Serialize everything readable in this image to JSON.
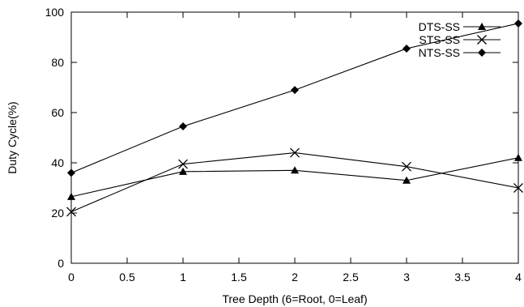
{
  "chart_data": {
    "type": "line",
    "xlabel": "Tree Depth (6=Root, 0=Leaf)",
    "ylabel": "Duty Cycle(%)",
    "xlim": [
      0,
      4
    ],
    "ylim": [
      0,
      100
    ],
    "x_ticks": [
      "0",
      "0.5",
      "1",
      "1.5",
      "2",
      "2.5",
      "3",
      "3.5",
      "4"
    ],
    "y_ticks": [
      "0",
      "20",
      "40",
      "60",
      "80",
      "100"
    ],
    "legend_position": "top-right",
    "grid": false,
    "x": [
      0,
      1,
      2,
      3,
      4
    ],
    "series": [
      {
        "name": "DTS-SS",
        "marker": "triangle",
        "values": [
          26.5,
          36.5,
          37,
          33,
          42
        ]
      },
      {
        "name": "STS-SS",
        "marker": "cross",
        "values": [
          20.5,
          39.5,
          44,
          38.5,
          30
        ]
      },
      {
        "name": "NTS-SS",
        "marker": "diamond",
        "values": [
          36,
          54.5,
          69,
          85.5,
          95.5
        ]
      }
    ]
  }
}
